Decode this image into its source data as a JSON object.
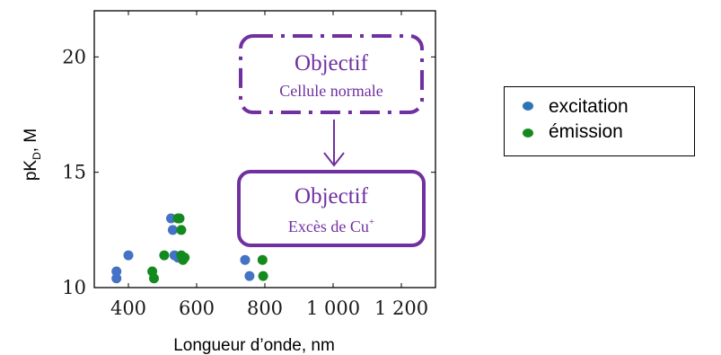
{
  "chart_data": {
    "type": "scatter",
    "title": "",
    "xlabel": "Longueur d’onde, nm",
    "ylabel_main": "pK",
    "ylabel_sub": "D",
    "ylabel_tail": ", M",
    "xlim": [
      300,
      1300
    ],
    "ylim": [
      10,
      22
    ],
    "xticks": [
      {
        "value": 400,
        "label": "400"
      },
      {
        "value": 600,
        "label": "600"
      },
      {
        "value": 800,
        "label": "800"
      },
      {
        "value": 1000,
        "label": "1 000"
      },
      {
        "value": 1200,
        "label": "1 200"
      }
    ],
    "yticks": [
      {
        "value": 10,
        "label": "10"
      },
      {
        "value": 15,
        "label": "15"
      },
      {
        "value": 20,
        "label": "20"
      }
    ],
    "grid": false,
    "legend_position": "right",
    "series": [
      {
        "name": "excitation",
        "color": "#4472c4",
        "points": [
          [
            365,
            10.7
          ],
          [
            365,
            10.4
          ],
          [
            400,
            11.4
          ],
          [
            525,
            13.0
          ],
          [
            530,
            12.5
          ],
          [
            535,
            11.4
          ],
          [
            545,
            11.3
          ],
          [
            742,
            11.2
          ],
          [
            755,
            10.5
          ]
        ]
      },
      {
        "name": "émission",
        "color": "#138a1e",
        "points": [
          [
            470,
            10.7
          ],
          [
            475,
            10.4
          ],
          [
            505,
            11.4
          ],
          [
            545,
            13.0
          ],
          [
            550,
            13.0
          ],
          [
            555,
            12.5
          ],
          [
            555,
            11.4
          ],
          [
            560,
            11.2
          ],
          [
            565,
            11.3
          ],
          [
            793,
            11.2
          ],
          [
            795,
            10.5
          ]
        ]
      }
    ],
    "annotations": {
      "top_box": {
        "title": "Objectif",
        "subtitle": "Cellule normale",
        "style": "dash-dot"
      },
      "bottom_box": {
        "title": "Objectif",
        "subtitle_main": "Excès de Cu",
        "subtitle_sup": "+",
        "style": "solid"
      },
      "arrow": "top_box-to-bottom_box",
      "color": "#7030a0"
    }
  }
}
